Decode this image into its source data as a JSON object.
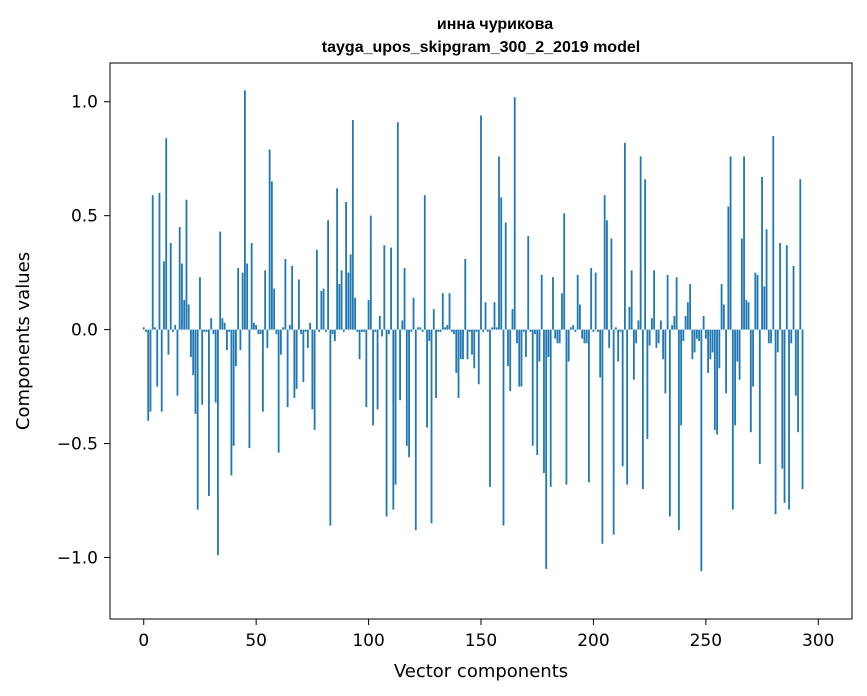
{
  "chart_data": {
    "type": "bar",
    "title": "инна чурикова",
    "subtitle": "tayga_upos_skipgram_300_2_2019 model",
    "xlabel": "Vector components",
    "ylabel": "Components values",
    "xlim": [
      -15,
      315
    ],
    "ylim": [
      -1.27,
      1.17
    ],
    "xticks": [
      0,
      50,
      100,
      150,
      200,
      250,
      300
    ],
    "xtick_labels": [
      "0",
      "50",
      "100",
      "150",
      "200",
      "250",
      "300"
    ],
    "yticks": [
      -1.0,
      -0.5,
      0.0,
      0.5,
      1.0
    ],
    "ytick_labels": [
      "−1.0",
      "−0.5",
      "0.0",
      "0.5",
      "1.0"
    ],
    "bar_color": "#1f77b4",
    "grid": false,
    "values": [
      0.01,
      -0.01,
      -0.4,
      -0.36,
      0.59,
      0.01,
      -0.25,
      0.6,
      -0.36,
      0.3,
      0.84,
      -0.11,
      0.38,
      -0.01,
      0.02,
      -0.29,
      0.45,
      0.29,
      0.13,
      0.57,
      0.11,
      -0.12,
      -0.2,
      -0.37,
      -0.79,
      0.23,
      -0.33,
      -0.01,
      -0.01,
      -0.73,
      0.05,
      -0.02,
      -0.32,
      -0.99,
      0.43,
      0.05,
      0.03,
      -0.09,
      -0.01,
      -0.64,
      -0.51,
      -0.16,
      0.27,
      -0.09,
      0.25,
      1.05,
      0.29,
      -0.52,
      0.38,
      0.03,
      0.02,
      -0.02,
      -0.02,
      -0.36,
      0.26,
      -0.08,
      0.79,
      0.65,
      0.18,
      -0.02,
      -0.54,
      -0.11,
      0.01,
      0.31,
      -0.34,
      0.02,
      0.28,
      -0.3,
      -0.26,
      0.22,
      -0.02,
      -0.23,
      -0.01,
      -0.08,
      0.03,
      -0.35,
      -0.44,
      0.35,
      -0.01,
      0.17,
      0.18,
      -0.01,
      0.48,
      -0.86,
      -0.02,
      -0.05,
      0.62,
      0.2,
      0.26,
      -0.01,
      0.56,
      0.25,
      0.33,
      0.92,
      0.14,
      -0.01,
      -0.13,
      -0.01,
      -0.01,
      -0.34,
      0.13,
      0.5,
      -0.42,
      -0.01,
      -0.35,
      0.06,
      -0.03,
      0.37,
      -0.82,
      -0.02,
      0.36,
      -0.79,
      -0.68,
      0.91,
      -0.31,
      0.04,
      0.27,
      -0.51,
      -0.56,
      -0.01,
      0.14,
      -0.88,
      0.01,
      0.01,
      -0.01,
      0.59,
      -0.43,
      -0.05,
      -0.85,
      0.09,
      -0.3,
      -0.01,
      -0.01,
      0.16,
      0.01,
      0.02,
      0.16,
      -0.01,
      -0.02,
      -0.19,
      -0.3,
      -0.13,
      -0.13,
      0.31,
      -0.13,
      -0.01,
      -0.11,
      -0.17,
      -0.01,
      -0.24,
      0.94,
      -0.01,
      0.12,
      -0.01,
      -0.69,
      0.01,
      0.12,
      0.01,
      0.76,
      0.58,
      -0.86,
      0.47,
      -0.16,
      -0.27,
      0.09,
      1.02,
      -0.06,
      -0.25,
      -0.25,
      -0.01,
      -0.12,
      0.41,
      -0.01,
      -0.51,
      -0.02,
      -0.55,
      -0.14,
      0.24,
      -0.63,
      -1.05,
      -0.12,
      -0.69,
      0.23,
      -0.04,
      -0.06,
      -0.06,
      0.16,
      0.51,
      -0.68,
      -0.14,
      0.01,
      0.02,
      -0.01,
      0.24,
      0.11,
      -0.04,
      -0.06,
      -0.06,
      -0.67,
      0.27,
      -0.01,
      0.25,
      -0.01,
      -0.21,
      -0.94,
      0.59,
      0.48,
      -0.08,
      0.4,
      -0.9,
      0.01,
      -0.14,
      -0.01,
      -0.6,
      0.82,
      -0.68,
      0.1,
      0.26,
      -0.22,
      -0.06,
      0.04,
      0.76,
      -0.7,
      0.66,
      -0.48,
      -0.07,
      0.05,
      0.26,
      -0.08,
      -0.06,
      0.04,
      -0.13,
      -0.28,
      0.24,
      -0.82,
      0.02,
      0.06,
      0.23,
      -0.88,
      -0.42,
      -0.05,
      0.06,
      0.12,
      0.2,
      -0.13,
      -0.1,
      -0.04,
      -0.05,
      -1.06,
      0.06,
      -0.04,
      -0.19,
      -0.13,
      -0.1,
      -0.44,
      -0.46,
      -0.17,
      0.2,
      0.11,
      -0.28,
      0.54,
      0.76,
      -0.79,
      -0.42,
      -0.14,
      -0.22,
      0.4,
      0.76,
      0.13,
      0.12,
      -0.45,
      -0.25,
      0.25,
      0.24,
      -0.59,
      0.67,
      0.19,
      0.44,
      -0.06,
      -0.06,
      0.85,
      -0.81,
      -0.1,
      0.38,
      -0.61,
      -0.76,
      0.37,
      -0.79,
      -0.06,
      0.28,
      -0.29,
      -0.45,
      0.66,
      -0.7
    ]
  }
}
